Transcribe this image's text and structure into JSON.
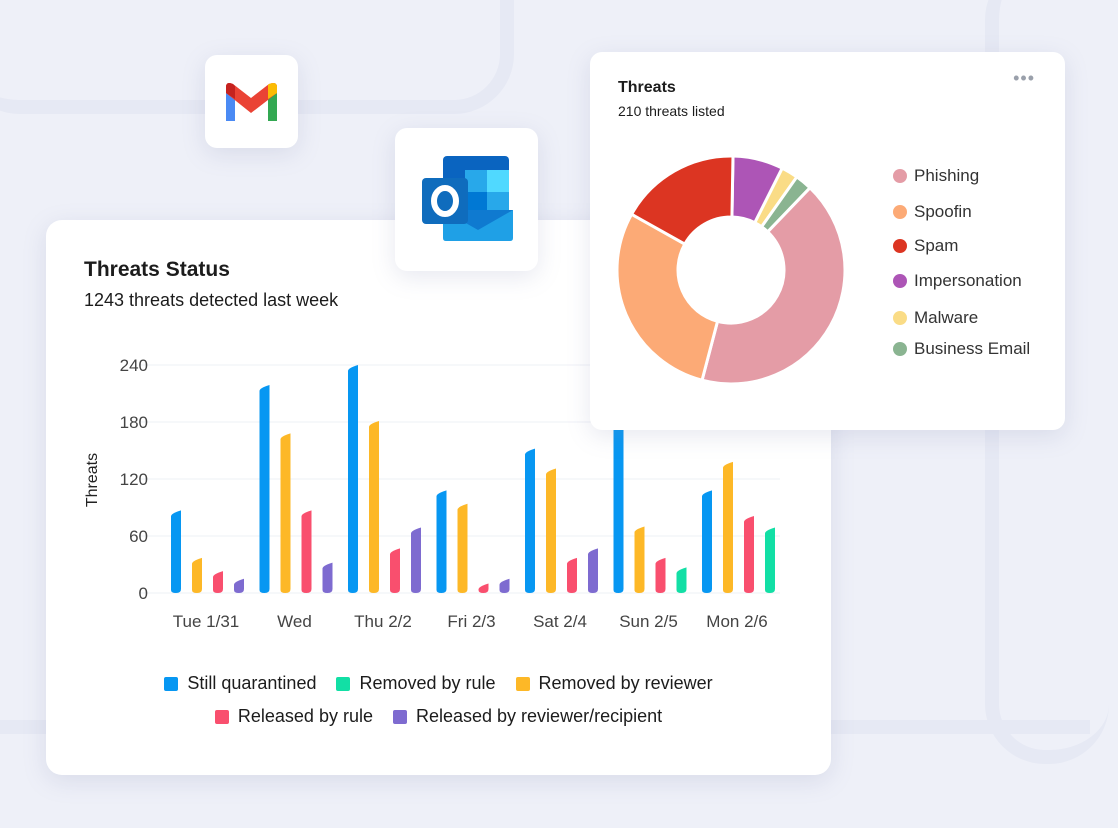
{
  "status_card": {
    "title": "Threats Status",
    "subtitle": "1243 threats detected last week"
  },
  "donut_card": {
    "title": "Threats",
    "subtitle": "210 threats listed",
    "more_label": "•••"
  },
  "apps": [
    {
      "name": "Gmail",
      "icon": "gmail-logo"
    },
    {
      "name": "Outlook",
      "icon": "outlook-logo"
    }
  ],
  "chart_data": [
    {
      "type": "bar",
      "title": "",
      "xlabel": "",
      "ylabel": "Threats",
      "ylim": [
        0,
        240
      ],
      "yticks": [
        "0",
        "60",
        "120",
        "180",
        "240"
      ],
      "grid": true,
      "legend_position": "bottom",
      "categories": [
        "Tue 1/31",
        "Wed",
        "Thu 2/2",
        "Fri 2/3",
        "Sat 2/4",
        "Sun 2/5",
        "Mon 2/6"
      ],
      "series": [
        {
          "name": "Still quarantined",
          "color": "#0797f2",
          "values": [
            87,
            219,
            240,
            108,
            152,
            185,
            108
          ]
        },
        {
          "name": "Removed by rule",
          "color": "#12dfa5",
          "values": [
            null,
            null,
            null,
            null,
            null,
            27,
            69
          ]
        },
        {
          "name": "Removed by reviewer",
          "color": "#fdb827",
          "values": [
            37,
            168,
            181,
            94,
            131,
            70,
            138
          ]
        },
        {
          "name": "Released by rule",
          "color": "#f94f6e",
          "values": [
            23,
            87,
            47,
            10,
            37,
            37,
            81
          ]
        },
        {
          "name": "Released by reviewer/recipient",
          "color": "#7e6bd0",
          "values": [
            15,
            32,
            69,
            15,
            47,
            null,
            null
          ]
        }
      ],
      "bar_order": [
        "Still quarantined",
        "Removed by reviewer",
        "Released by rule",
        "Released by reviewer/recipient",
        "Removed by rule"
      ]
    },
    {
      "type": "pie",
      "style": "donut",
      "title": "Threats",
      "total": 210,
      "legend_position": "right",
      "slices": [
        {
          "name": "Phishing",
          "value": 88,
          "color": "#e49ca6"
        },
        {
          "name": "Spoofin",
          "value": 61,
          "color": "#fcaa76"
        },
        {
          "name": "Spam",
          "value": 36,
          "color": "#dc3522"
        },
        {
          "name": "Impersonation",
          "value": 15,
          "color": "#ad55b6"
        },
        {
          "name": "Malware",
          "value": 5,
          "color": "#fadc86"
        },
        {
          "name": "Business Email",
          "value": 5,
          "color": "#8ab491"
        }
      ],
      "draw_order": [
        "Impersonation",
        "Malware",
        "Business Email",
        "Phishing",
        "Spoofin",
        "Spam"
      ]
    }
  ]
}
